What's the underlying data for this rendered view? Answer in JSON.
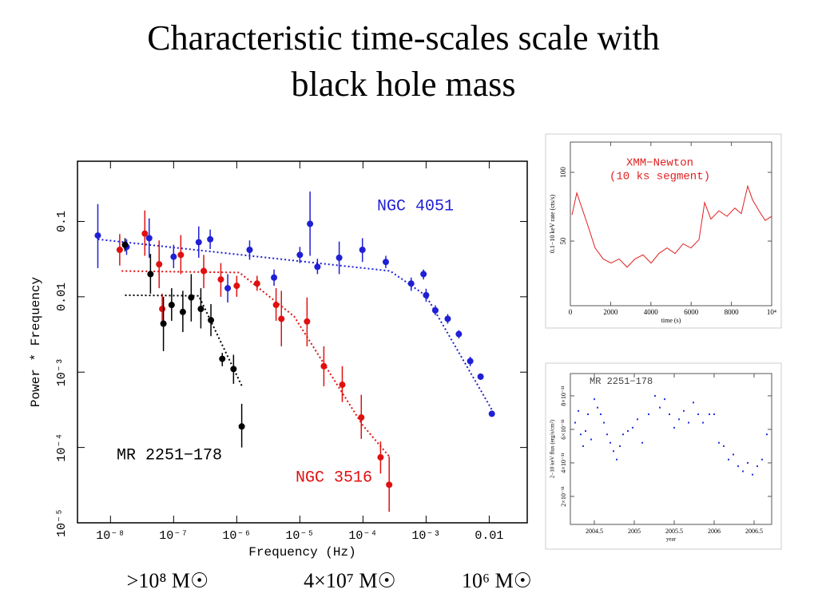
{
  "title_lines": [
    "Characteristic time-scales scale with",
    "black hole mass"
  ],
  "mass_labels": [
    ">10⁸ M☉",
    "4×10⁷ M☉",
    "10⁶ M☉"
  ],
  "chart_data": [
    {
      "type": "scatter",
      "xlabel": "Frequency (Hz)",
      "ylabel": "Power * Frequency",
      "xscale": "log",
      "yscale": "log",
      "xlim": [
        3e-09,
        0.04
      ],
      "ylim": [
        1e-05,
        0.63
      ],
      "xticks": [
        {
          "value": 1e-08,
          "label": "10⁻⁸"
        },
        {
          "value": 1e-07,
          "label": "10⁻⁷"
        },
        {
          "value": 1e-06,
          "label": "10⁻⁶"
        },
        {
          "value": 1e-05,
          "label": "10⁻⁵"
        },
        {
          "value": 0.0001,
          "label": "10⁻⁴"
        },
        {
          "value": 0.001,
          "label": "10⁻³"
        },
        0.01
      ],
      "yticks": [
        {
          "value": 1e-05,
          "label": "10⁻⁵"
        },
        {
          "value": 0.0001,
          "label": "10⁻⁴"
        },
        {
          "value": 0.001,
          "label": "10⁻³"
        },
        0.01,
        0.1
      ],
      "series": [
        {
          "name": "NGC 4051",
          "color": "#1f1fd6",
          "x": [
            6.3e-09,
            1.8e-08,
            4.1e-08,
            1e-07,
            2.5e-07,
            3.8e-07,
            7.2e-07,
            1.6e-06,
            3.9e-06,
            1e-05,
            1.45e-05,
            1.9e-05,
            4.2e-05,
            9.8e-05,
            0.00023,
            0.00058,
            0.00091,
            0.001,
            0.0014,
            0.0022,
            0.0033,
            0.005,
            0.0073,
            0.011
          ],
          "values": [
            0.065,
            0.046,
            0.06,
            0.034,
            0.053,
            0.058,
            0.013,
            0.042,
            0.018,
            0.036,
            0.093,
            0.025,
            0.033,
            0.042,
            0.029,
            0.015,
            0.02,
            0.0105,
            0.0066,
            0.0051,
            0.0032,
            0.0014,
            0.00087,
            0.00028
          ],
          "ylow": [
            0.024,
            0.036,
            0.033,
            0.024,
            0.033,
            0.043,
            0.0084,
            0.031,
            0.014,
            0.028,
            0.035,
            0.02,
            0.02,
            0.029,
            0.024,
            0.012,
            0.017,
            0.0086,
            0.0057,
            0.0044,
            0.0028,
            0.0012,
            0.00079,
            0.00026
          ],
          "yhigh": [
            0.17,
            0.058,
            0.11,
            0.049,
            0.086,
            0.078,
            0.02,
            0.056,
            0.023,
            0.046,
            0.25,
            0.032,
            0.054,
            0.06,
            0.035,
            0.018,
            0.023,
            0.0128,
            0.0077,
            0.0059,
            0.0036,
            0.0016,
            0.00096,
            0.0003
          ],
          "model_x": [
            6.3e-09,
            0.00027,
            0.001,
            0.012
          ],
          "model_y": [
            0.058,
            0.022,
            0.0103,
            0.00028
          ]
        },
        {
          "name": "NGC 3516",
          "color": "#e01010",
          "x": [
            1.4e-08,
            3.5e-08,
            5.9e-08,
            1.3e-07,
            6.6e-08,
            3e-07,
            5.6e-07,
            1e-06,
            2.1e-06,
            4.2e-06,
            5.1e-06,
            1.3e-05,
            2.4e-05,
            4.7e-05,
            9.4e-05,
            0.00019,
            0.00026
          ],
          "values": [
            0.042,
            0.069,
            0.027,
            0.036,
            0.0069,
            0.022,
            0.017,
            0.014,
            0.015,
            0.0078,
            0.0051,
            0.0047,
            0.0012,
            0.00068,
            0.00025,
            7.4e-05,
            3.2e-05
          ],
          "ylow": [
            0.026,
            0.035,
            0.013,
            0.02,
            0.0042,
            0.013,
            0.01,
            0.01,
            0.012,
            0.0048,
            0.0022,
            0.0022,
            0.00065,
            0.0004,
            0.00013,
            4.5e-05,
            1.4e-05
          ],
          "yhigh": [
            0.068,
            0.14,
            0.056,
            0.066,
            0.011,
            0.036,
            0.028,
            0.019,
            0.019,
            0.013,
            0.012,
            0.0098,
            0.0022,
            0.0012,
            0.0005,
            0.00012,
            7.6e-05
          ],
          "model_x": [
            1.5e-08,
            1.1e-06,
            8.1e-06,
            9.8e-05,
            0.00026
          ],
          "model_y": [
            0.022,
            0.021,
            0.0055,
            0.0002,
            7.6e-05
          ]
        },
        {
          "name": "MR 2251−178",
          "color": "#000000",
          "x": [
            1.7e-08,
            4.3e-08,
            6.9e-08,
            9.3e-08,
            1.4e-07,
            1.9e-07,
            2.7e-07,
            3.9e-07,
            5.9e-07,
            8.9e-07,
            1.2e-06
          ],
          "values": [
            0.049,
            0.02,
            0.0044,
            0.0078,
            0.0063,
            0.0098,
            0.0069,
            0.0049,
            0.0015,
            0.0011,
            0.00019
          ],
          "ylow": [
            0.04,
            0.011,
            0.0019,
            0.0048,
            0.0034,
            0.0047,
            0.0038,
            0.003,
            0.0012,
            0.0007,
            0.0001
          ],
          "yhigh": [
            0.06,
            0.037,
            0.01,
            0.013,
            0.012,
            0.02,
            0.013,
            0.008,
            0.0018,
            0.0017,
            0.00038
          ],
          "model_x": [
            1.7e-08,
            2.5e-07,
            1.2e-06
          ],
          "model_y": [
            0.0105,
            0.0103,
            0.00066
          ]
        }
      ]
    },
    {
      "type": "line",
      "annotations": [
        "XMM−Newton",
        "(10 ks segment)"
      ],
      "xlabel": "time (s)",
      "ylabel": "0.1−10 keV rate (cts/s)",
      "xlim": [
        0,
        10000
      ],
      "ylim": [
        3,
        122
      ],
      "xticks": [
        0,
        2000,
        4000,
        6000,
        8000,
        {
          "value": 10000,
          "label": "10⁴"
        }
      ],
      "yticks": [
        50,
        100
      ],
      "series": [
        {
          "color": "#e02020",
          "x": [
            80,
            320,
            830,
            1230,
            1630,
            2020,
            2420,
            2820,
            3210,
            3610,
            4010,
            4400,
            4800,
            5200,
            5600,
            5990,
            6390,
            6670,
            6980,
            7380,
            7780,
            8170,
            8490,
            8810,
            9050,
            9370,
            9680,
            10000
          ],
          "values": [
            69,
            85,
            63,
            45,
            37,
            34,
            37,
            31,
            37,
            40,
            34,
            41,
            45,
            41,
            48,
            45,
            51,
            78,
            66,
            72,
            68,
            74,
            70,
            90,
            80,
            72,
            65,
            68
          ]
        }
      ]
    },
    {
      "type": "scatter",
      "title": "MR 2251−178",
      "xlabel": "year",
      "ylabel": "2−10 keV flux (erg/s/cm²)",
      "xlim": [
        2004.2,
        2006.72
      ],
      "ylim": [
        3.3e-12,
        9.33e-11
      ],
      "xticks": [
        2004.5,
        2005,
        2005.5,
        2006,
        2006.5
      ],
      "yticks": [
        {
          "value": 2e-11,
          "label": "2×10⁻¹¹"
        },
        {
          "value": 4e-11,
          "label": "4×10⁻¹¹"
        },
        {
          "value": 6e-11,
          "label": "6×10⁻¹¹"
        },
        {
          "value": 8e-11,
          "label": "8×10⁻¹¹"
        }
      ],
      "series": [
        {
          "color": "#2030e0",
          "x": [
            2004.26,
            2004.3,
            2004.33,
            2004.36,
            2004.39,
            2004.42,
            2004.46,
            2004.5,
            2004.54,
            2004.58,
            2004.62,
            2004.66,
            2004.7,
            2004.74,
            2004.78,
            2004.82,
            2004.86,
            2004.92,
            2004.98,
            2005.04,
            2005.1,
            2005.18,
            2005.26,
            2005.32,
            2005.38,
            2005.44,
            2005.5,
            2005.56,
            2005.62,
            2005.68,
            2005.74,
            2005.8,
            2005.86,
            2005.94,
            2006,
            2006.06,
            2006.12,
            2006.18,
            2006.24,
            2006.3,
            2006.36,
            2006.42,
            2006.48,
            2006.54,
            2006.6,
            2006.66
          ],
          "values": [
            6.4e-11,
            7.1e-11,
            5.7e-11,
            5e-11,
            5.9e-11,
            6.9e-11,
            5.4e-11,
            7.8e-11,
            7.3e-11,
            6.9e-11,
            6.4e-11,
            5.7e-11,
            5.2e-11,
            4.7e-11,
            4.2e-11,
            5e-11,
            5.7e-11,
            5.9e-11,
            6.1e-11,
            6.6e-11,
            5.2e-11,
            6.9e-11,
            8e-11,
            7.3e-11,
            7.8e-11,
            6.9e-11,
            6.1e-11,
            6.6e-11,
            7.1e-11,
            6.4e-11,
            7.6e-11,
            6.9e-11,
            6.4e-11,
            6.9e-11,
            6.9e-11,
            5.2e-11,
            5e-11,
            4.2e-11,
            4.5e-11,
            3.8e-11,
            3.5e-11,
            4e-11,
            3.3e-11,
            3.8e-11,
            4.2e-11,
            5.7e-11
          ]
        }
      ]
    }
  ]
}
